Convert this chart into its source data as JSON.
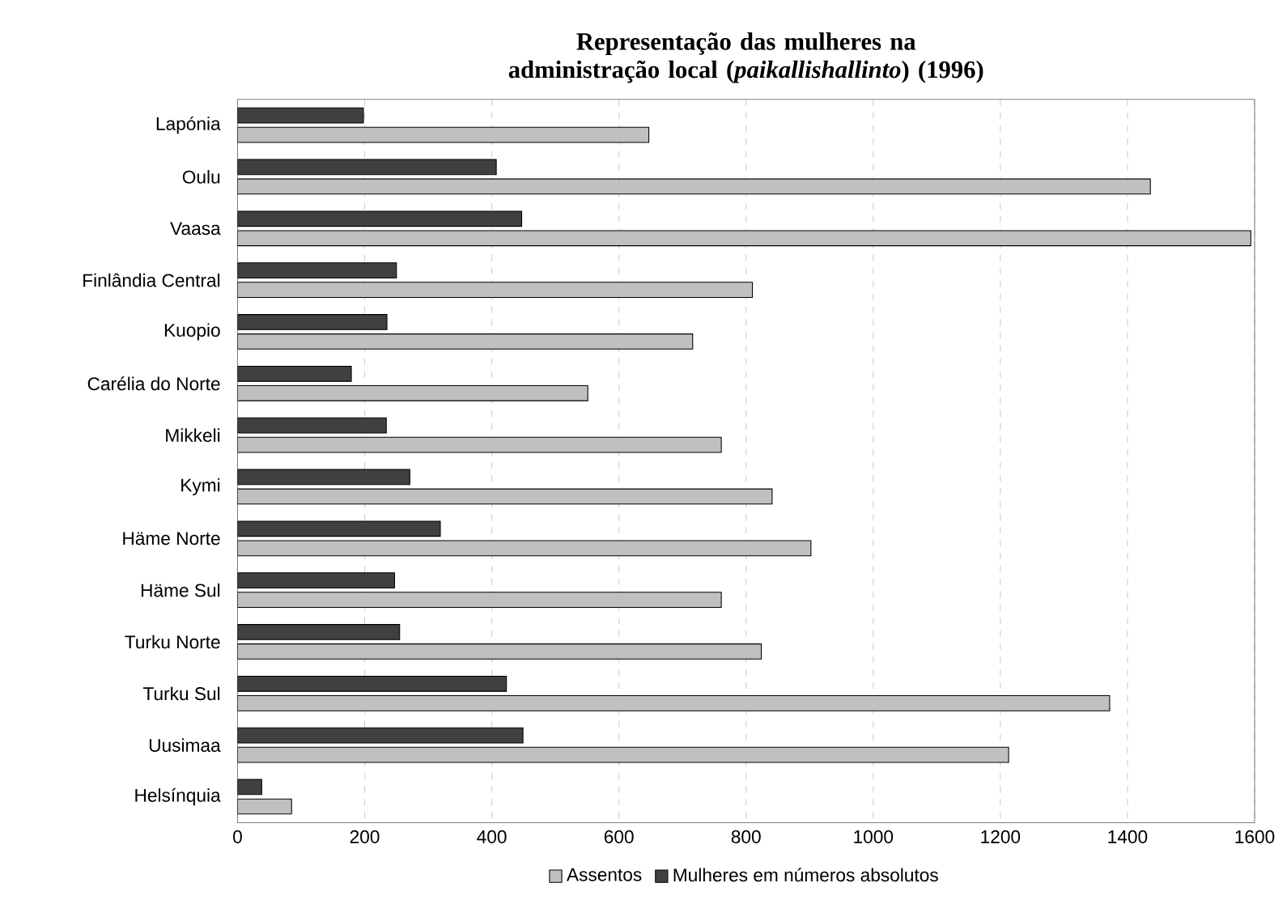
{
  "chart_data": {
    "type": "bar",
    "orientation": "horizontal",
    "title": "Representação das mulheres na administração local (*paikallishallinto*) (1996)",
    "categories": [
      "Lapónia",
      "Oulu",
      "Vaasa",
      "Finlândia Central",
      "Kuopio",
      "Carélia do Norte",
      "Mikkeli",
      "Kymi",
      "Häme Norte",
      "Häme Sul",
      "Turku Norte",
      "Turku Sul",
      "Uusimaa",
      "Helsínquia"
    ],
    "series": [
      {
        "name": "Assentos",
        "color": "#c0c0c0",
        "values": [
          647,
          1436,
          1594,
          810,
          716,
          551,
          761,
          841,
          902,
          761,
          824,
          1372,
          1213,
          85
        ]
      },
      {
        "name": "Mulheres em números absolutos",
        "color": "#404040",
        "values": [
          198,
          407,
          447,
          250,
          235,
          179,
          234,
          271,
          319,
          247,
          255,
          423,
          449,
          38
        ]
      }
    ],
    "xlim": [
      0,
      1600
    ],
    "xticks": [
      0,
      200,
      400,
      600,
      800,
      1000,
      1200,
      1400,
      1600
    ],
    "grid": "x",
    "legend": "bottom"
  }
}
